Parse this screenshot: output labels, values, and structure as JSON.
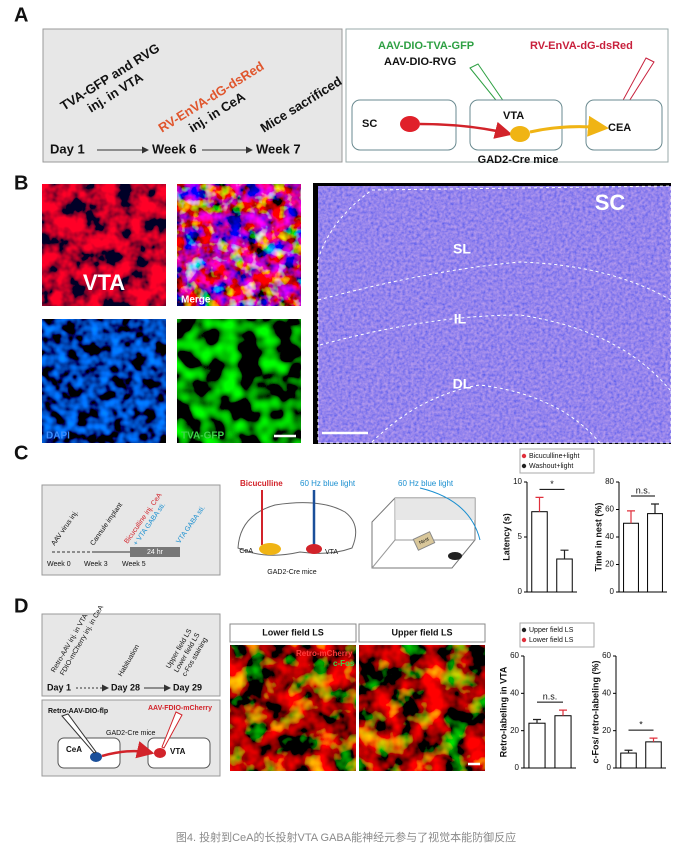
{
  "panel_a": {
    "label": "A",
    "steps": [
      [
        "TVA-GFP and RVG",
        "inj. in VTA"
      ],
      [
        "RV-EnVA-dG-dsRed",
        "inj. in CeA"
      ],
      [
        "Mice sacrificed"
      ]
    ],
    "times": [
      "Day 1",
      "Week 6",
      "Week 7"
    ],
    "vectors": [
      "AAV-DIO-TVA-GFP",
      "AAV-DIO-RVG",
      "RV-EnVA-dG-dsRed"
    ],
    "nodes": [
      "SC",
      "VTA",
      "CEA"
    ],
    "mouse": "GAD2-Cre mice"
  },
  "panel_b": {
    "label": "B",
    "images": [
      "VTA",
      "Merge",
      "DAPI",
      "TVA-GFP"
    ],
    "region": "SC",
    "layers": [
      "SL",
      "IL",
      "DL"
    ]
  },
  "panel_c": {
    "label": "C",
    "timeline": {
      "events": [
        "AAV virus inj.",
        "Cannule implant",
        "Bicuculline inj. CeA",
        "+ VTA GABA sti.",
        "VTA GABA sti."
      ],
      "duration": "24 hr",
      "weeks": [
        "Week 0",
        "Week 3",
        "Week 5"
      ]
    },
    "diagram": {
      "drug": "Bicuculline",
      "light": "60 Hz blue light",
      "regions": [
        "CeA",
        "VTA"
      ],
      "mouse": "GAD2-Cre mice"
    },
    "arena": {
      "light": "60 Hz blue light",
      "nest": "Nest"
    }
  },
  "panel_d": {
    "label": "D",
    "timeline": {
      "steps": [
        [
          "Retro-AAV inj. in VTA",
          "FDIO-mCherry inj. in CeA"
        ],
        [
          "Habituation"
        ],
        [
          "Upper field LS",
          "Lower field LS",
          "c-Fos staining"
        ]
      ],
      "days": [
        "Day 1",
        "Day 28",
        "Day 29"
      ]
    },
    "circuit": {
      "vectors": [
        "Retro-AAV-DIO-flp",
        "AAV-FDIO-mCherry"
      ],
      "mouse": "GAD2-Cre mice",
      "regions": [
        "CeA",
        "VTA"
      ]
    },
    "images": [
      "Lower field LS",
      "Upper field LS"
    ],
    "stains": [
      "Retro-mCherry",
      "c-Fos"
    ]
  },
  "chart_data": [
    {
      "type": "bar",
      "ylabel": "Latency (s)",
      "annotation": "*",
      "ylim": [
        0,
        10
      ],
      "yticks": [
        0,
        5,
        10
      ],
      "series": [
        {
          "name": "Bicuculline+light",
          "color": "#e0303c",
          "values": [
            7.3
          ],
          "errors": [
            1.3
          ]
        },
        {
          "name": "Washout+light",
          "color": "#222222",
          "values": [
            3.0
          ],
          "errors": [
            0.8
          ]
        }
      ]
    },
    {
      "type": "bar",
      "ylabel": "Time in nest (%)",
      "annotation": "n.s.",
      "ylim": [
        0,
        80
      ],
      "yticks": [
        0,
        20,
        40,
        60,
        80
      ],
      "series": [
        {
          "color": "#e0303c",
          "values": [
            50
          ],
          "errors": [
            9
          ]
        },
        {
          "color": "#222222",
          "values": [
            57
          ],
          "errors": [
            7
          ]
        }
      ]
    },
    {
      "type": "bar",
      "ylabel": "Retro-labeling in VTA",
      "annotation": "n.s.",
      "ylim": [
        0,
        60
      ],
      "yticks": [
        0,
        20,
        40,
        60
      ],
      "series": [
        {
          "name": "Upper field LS",
          "color": "#222222",
          "values": [
            24
          ],
          "errors": [
            2
          ]
        },
        {
          "name": "Lower field LS",
          "color": "#e0303c",
          "values": [
            28
          ],
          "errors": [
            3
          ]
        }
      ]
    },
    {
      "type": "bar",
      "ylabel": "c-Fos/ retro-labeling (%)",
      "annotation": "*",
      "ylim": [
        0,
        60
      ],
      "yticks": [
        0,
        20,
        40,
        60
      ],
      "series": [
        {
          "color": "#222222",
          "values": [
            8
          ],
          "errors": [
            1.5
          ]
        },
        {
          "color": "#e0303c",
          "values": [
            14
          ],
          "errors": [
            2
          ]
        }
      ]
    }
  ],
  "caption": "图4. 投射到CeA的长投射VTA GABA能神经元参与了视觉本能防御反应"
}
